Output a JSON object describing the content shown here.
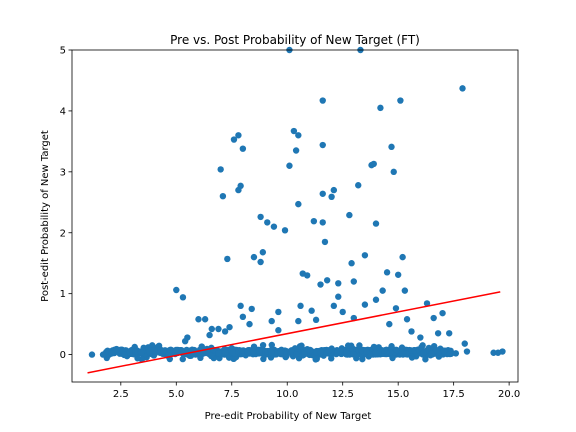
{
  "chart_data": {
    "type": "scatter",
    "title": "Pre vs. Post Probability of New Target (FT)",
    "xlabel": "Pre-edit Probability of New Target",
    "ylabel": "Post-edit Probability of New Target",
    "xlim": [
      0.3,
      20.4
    ],
    "ylim": [
      -0.45,
      5.0
    ],
    "xticks": [
      2.5,
      5.0,
      7.5,
      10.0,
      12.5,
      15.0,
      17.5,
      20.0
    ],
    "xtick_labels": [
      "2.5",
      "5.0",
      "7.5",
      "10.0",
      "12.5",
      "15.0",
      "17.5",
      "20.0"
    ],
    "yticks": [
      0,
      1,
      2,
      3,
      4,
      5
    ],
    "ytick_labels": [
      "0",
      "1",
      "2",
      "3",
      "4",
      "5"
    ],
    "grid": false,
    "legend": "none",
    "colors": {
      "points": "#1f77b4",
      "fit_line": "#ff0000"
    },
    "fit_line": {
      "x": [
        1.0,
        19.6
      ],
      "y": [
        -0.3,
        1.03
      ]
    },
    "outliers": [
      [
        5.0,
        1.06
      ],
      [
        5.3,
        0.94
      ],
      [
        6.0,
        0.58
      ],
      [
        6.3,
        0.58
      ],
      [
        7.0,
        3.04
      ],
      [
        7.1,
        2.6
      ],
      [
        7.3,
        1.57
      ],
      [
        7.6,
        3.53
      ],
      [
        7.8,
        3.6
      ],
      [
        7.8,
        2.7
      ],
      [
        7.9,
        2.77
      ],
      [
        8.0,
        3.38
      ],
      [
        7.9,
        0.8
      ],
      [
        8.5,
        1.6
      ],
      [
        8.8,
        2.26
      ],
      [
        8.8,
        1.52
      ],
      [
        8.9,
        1.68
      ],
      [
        9.1,
        2.17
      ],
      [
        9.4,
        2.1
      ],
      [
        9.6,
        0.4
      ],
      [
        9.9,
        2.04
      ],
      [
        10.1,
        3.1
      ],
      [
        10.1,
        5.0
      ],
      [
        10.3,
        3.67
      ],
      [
        10.4,
        3.35
      ],
      [
        10.5,
        3.6
      ],
      [
        10.5,
        2.47
      ],
      [
        10.7,
        1.33
      ],
      [
        10.6,
        0.8
      ],
      [
        10.9,
        1.3
      ],
      [
        11.2,
        2.19
      ],
      [
        11.6,
        4.17
      ],
      [
        11.6,
        3.44
      ],
      [
        11.6,
        2.64
      ],
      [
        11.6,
        2.17
      ],
      [
        11.7,
        1.85
      ],
      [
        11.8,
        1.22
      ],
      [
        11.5,
        1.15
      ],
      [
        12.0,
        2.59
      ],
      [
        12.1,
        2.7
      ],
      [
        12.3,
        1.17
      ],
      [
        12.8,
        2.29
      ],
      [
        12.9,
        1.5
      ],
      [
        13.0,
        1.2
      ],
      [
        13.2,
        2.78
      ],
      [
        13.3,
        5.0
      ],
      [
        13.5,
        1.63
      ],
      [
        13.8,
        3.11
      ],
      [
        13.9,
        3.13
      ],
      [
        14.0,
        2.15
      ],
      [
        14.2,
        4.05
      ],
      [
        14.3,
        1.05
      ],
      [
        14.5,
        1.35
      ],
      [
        14.7,
        3.41
      ],
      [
        14.8,
        3.0
      ],
      [
        15.0,
        1.31
      ],
      [
        15.1,
        4.17
      ],
      [
        15.2,
        1.6
      ],
      [
        15.3,
        1.05
      ],
      [
        16.3,
        0.84
      ],
      [
        17.9,
        4.37
      ],
      [
        7.4,
        0.45
      ],
      [
        8.3,
        0.5
      ],
      [
        8.4,
        0.75
      ],
      [
        9.3,
        0.55
      ],
      [
        10.5,
        0.55
      ],
      [
        11.3,
        0.57
      ],
      [
        12.3,
        0.95
      ],
      [
        12.5,
        0.7
      ],
      [
        13.0,
        0.6
      ],
      [
        13.5,
        0.82
      ],
      [
        14.0,
        0.9
      ],
      [
        14.6,
        0.5
      ],
      [
        15.4,
        0.58
      ],
      [
        16.0,
        0.28
      ],
      [
        16.6,
        0.6
      ],
      [
        17.0,
        0.68
      ],
      [
        16.8,
        0.35
      ],
      [
        17.3,
        0.35
      ],
      [
        6.5,
        0.32
      ],
      [
        6.6,
        0.42
      ],
      [
        8.0,
        0.62
      ],
      [
        9.6,
        0.7
      ],
      [
        11.1,
        0.72
      ],
      [
        12.1,
        0.8
      ],
      [
        14.9,
        0.76
      ],
      [
        15.6,
        0.38
      ],
      [
        1.2,
        0.0
      ],
      [
        1.7,
        0.0
      ],
      [
        2.1,
        0.02
      ],
      [
        17.6,
        0.02
      ],
      [
        18.0,
        0.18
      ],
      [
        18.1,
        0.05
      ],
      [
        19.3,
        0.03
      ],
      [
        19.5,
        0.03
      ],
      [
        19.7,
        0.05
      ],
      [
        5.5,
        0.28
      ],
      [
        5.4,
        0.22
      ],
      [
        6.9,
        0.42
      ],
      [
        7.2,
        0.38
      ]
    ],
    "dense_band": {
      "x_range": [
        1.8,
        17.4
      ],
      "y_center": 0.04,
      "y_spread": 0.08,
      "count": 900
    }
  }
}
